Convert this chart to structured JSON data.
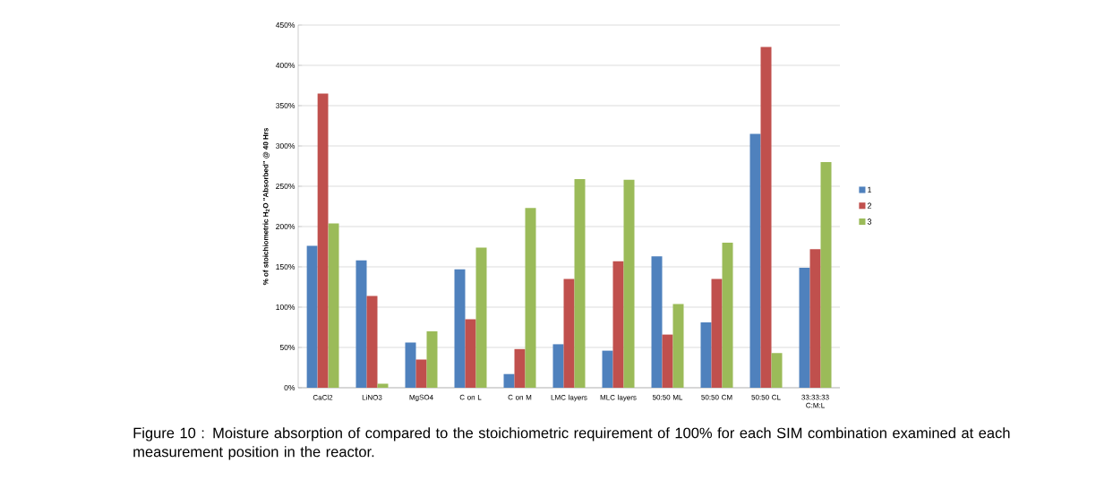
{
  "chart_data": {
    "type": "bar",
    "ylabel": "% of stoichiometric H$_{2}$O \"Absorbed\" @ 40 Hrs",
    "categories": [
      "CaCl2",
      "LiNO3",
      "MgSO4",
      "C on L",
      "C on M",
      "LMC layers",
      "MLC layers",
      "50:50 ML",
      "50:50 CM",
      "50:50 CL",
      "33:33:33 C:M:L"
    ],
    "series": [
      {
        "name": "1",
        "color": "#4f81bd",
        "values": [
          176,
          158,
          56,
          147,
          17,
          54,
          46,
          163,
          81,
          315,
          149
        ]
      },
      {
        "name": "2",
        "color": "#c0504d",
        "values": [
          365,
          114,
          35,
          85,
          48,
          135,
          157,
          66,
          135,
          423,
          172
        ]
      },
      {
        "name": "3",
        "color": "#9bbb59",
        "values": [
          204,
          5,
          70,
          174,
          223,
          259,
          258,
          104,
          180,
          43,
          280
        ]
      }
    ],
    "ylim": [
      0,
      450
    ],
    "yticks": [
      {
        "value": 0,
        "label": "0%"
      },
      {
        "value": 50,
        "label": "50%"
      },
      {
        "value": 100,
        "label": "100%"
      },
      {
        "value": 150,
        "label": "150%"
      },
      {
        "value": 200,
        "label": "200%"
      },
      {
        "value": 250,
        "label": "250%"
      },
      {
        "value": 300,
        "label": "300%"
      },
      {
        "value": 350,
        "label": "350%"
      },
      {
        "value": 400,
        "label": "400%"
      },
      {
        "value": 450,
        "label": "450%"
      }
    ],
    "grid": "y",
    "legend": "right",
    "annotations": [
      "Figure 10 : Moisture absorption of compared to the stoichiometric requirement of 100% for each SIM combination examined at each measurement position in the reactor."
    ]
  }
}
